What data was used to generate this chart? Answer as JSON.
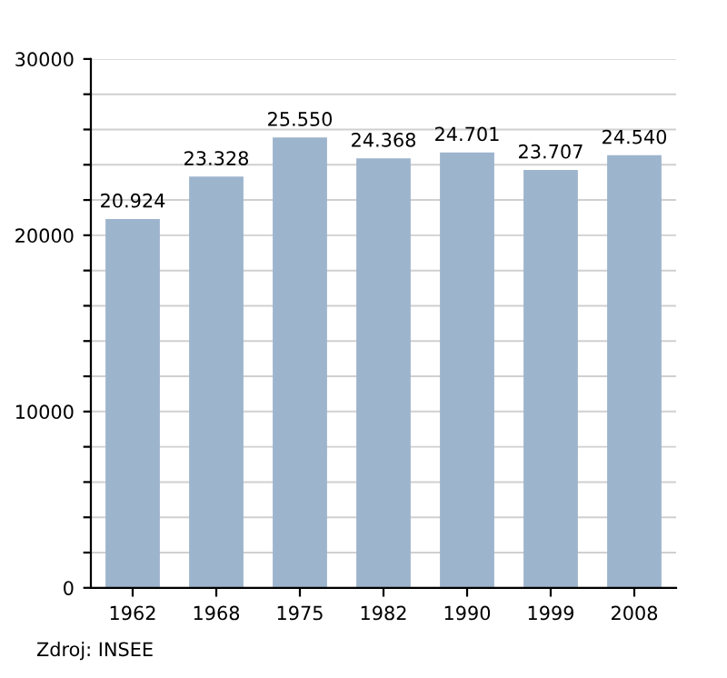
{
  "chart_data": {
    "type": "bar",
    "categories": [
      "1962",
      "1968",
      "1975",
      "1982",
      "1990",
      "1999",
      "2008"
    ],
    "values": [
      20924,
      23328,
      25550,
      24368,
      24701,
      23707,
      24540
    ],
    "value_labels": [
      "20.924",
      "23.328",
      "25.550",
      "24.368",
      "24.701",
      "23.707",
      "24.540"
    ],
    "color": "#9db4cd",
    "ylim": [
      0,
      30000
    ],
    "yticks": [
      0,
      {
        "value": 2000,
        "label": null
      },
      {
        "value": 4000,
        "label": null
      },
      {
        "value": 6000,
        "label": null
      },
      {
        "value": 8000,
        "label": null
      },
      10000,
      {
        "value": 12000,
        "label": null
      },
      {
        "value": 14000,
        "label": null
      },
      {
        "value": 16000,
        "label": null
      },
      {
        "value": 18000,
        "label": null
      },
      20000,
      {
        "value": 22000,
        "label": null
      },
      {
        "value": 24000,
        "label": null
      },
      {
        "value": 26000,
        "label": null
      },
      {
        "value": 28000,
        "label": null
      },
      30000
    ],
    "grid": "y",
    "annotations": [
      "Zdroj: INSEE"
    ]
  }
}
